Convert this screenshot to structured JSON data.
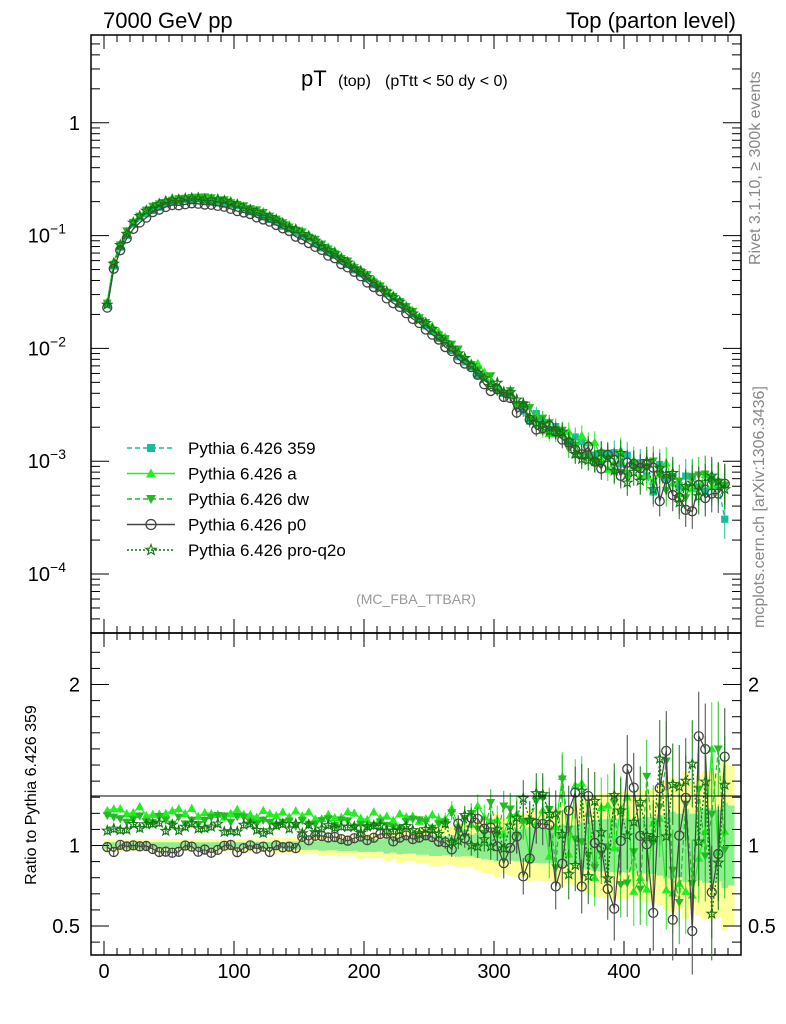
{
  "header": {
    "energy_label": "7000 GeV pp",
    "process_label": "Top (parton level)"
  },
  "side_labels": {
    "rivet": "Rivet 3.1.10, ≥ 300k events",
    "mcplots": "mcplots.cern.ch [arXiv:1306.3436]"
  },
  "chart_data": {
    "type": "line",
    "title_main": "pT",
    "title_sub1": "(top)",
    "title_sub2": "(pTtt < 50 dy < 0)",
    "analysis_tag": "(MC_FBA_TTBAR)",
    "xlim": [
      -10,
      490
    ],
    "x_ticks": [
      "0",
      "100",
      "200",
      "300",
      "400"
    ],
    "main": {
      "yscale": "log",
      "ylim": [
        3e-05,
        6
      ],
      "y_ticks": [
        {
          "value": 1,
          "base": "1",
          "exp": ""
        },
        {
          "value": 0.1,
          "base": "10",
          "exp": "−1"
        },
        {
          "value": 0.01,
          "base": "10",
          "exp": "−2"
        },
        {
          "value": 0.001,
          "base": "10",
          "exp": "−3"
        },
        {
          "value": 0.0001,
          "base": "10",
          "exp": "−4"
        }
      ]
    },
    "ratio": {
      "ylabel": "Ratio to Pythia 6.426 359",
      "ylim": [
        0.32,
        2.32
      ],
      "y_ticks": [
        "0.5",
        "1",
        "2"
      ],
      "y_tick_values": [
        0.5,
        1,
        2
      ]
    },
    "series": [
      {
        "name": "Pythia 6.426 359",
        "color": "#1abc9c",
        "marker": "square",
        "dash": "5,3",
        "ratio_offset": 0.0
      },
      {
        "name": "Pythia 6.426 a",
        "color": "#22ee22",
        "marker": "triangle-up",
        "dash": "",
        "ratio_offset": 0.22
      },
      {
        "name": "Pythia 6.426 dw",
        "color": "#22bb22",
        "marker": "triangle-down",
        "dash": "5,3",
        "ratio_offset": 0.17
      },
      {
        "name": "Pythia 6.426 p0",
        "color": "#444444",
        "marker": "circle-open",
        "dash": "",
        "ratio_offset": 0.0
      },
      {
        "name": "Pythia 6.426 pro-q2o",
        "color": "#117711",
        "marker": "star-open",
        "dash": "2,2",
        "ratio_offset": 0.12
      }
    ],
    "reference_curve": {
      "x": [
        0,
        5,
        10,
        15,
        20,
        25,
        30,
        40,
        50,
        60,
        70,
        80,
        90,
        100,
        120,
        140,
        160,
        180,
        200,
        220,
        240,
        260,
        280,
        300,
        320,
        340,
        360,
        380,
        400,
        420,
        440,
        460,
        480
      ],
      "y": [
        0.014,
        0.042,
        0.068,
        0.092,
        0.115,
        0.135,
        0.152,
        0.178,
        0.195,
        0.205,
        0.208,
        0.206,
        0.198,
        0.185,
        0.155,
        0.12,
        0.09,
        0.064,
        0.044,
        0.029,
        0.019,
        0.012,
        0.0075,
        0.0047,
        0.003,
        0.002,
        0.0014,
        0.0011,
        0.0009,
        0.00075,
        0.00065,
        0.00058,
        0.00048
      ]
    }
  }
}
